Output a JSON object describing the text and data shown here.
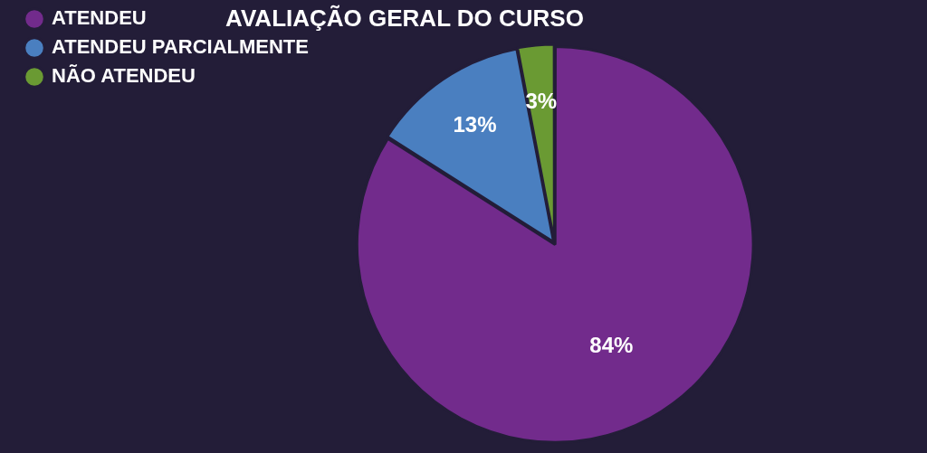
{
  "chart_data": {
    "type": "pie",
    "title": "AVALIAÇÃO GERAL DO CURSO",
    "categories": [
      "ATENDEU",
      "ATENDEU PARCIALMENTE",
      "NÃO ATENDEU"
    ],
    "values": [
      84,
      13,
      3
    ],
    "colors": [
      "#722b8c",
      "#4a7fc0",
      "#6a9a33"
    ],
    "value_labels": [
      "84%",
      "13%",
      "3%"
    ],
    "legend": "left"
  }
}
